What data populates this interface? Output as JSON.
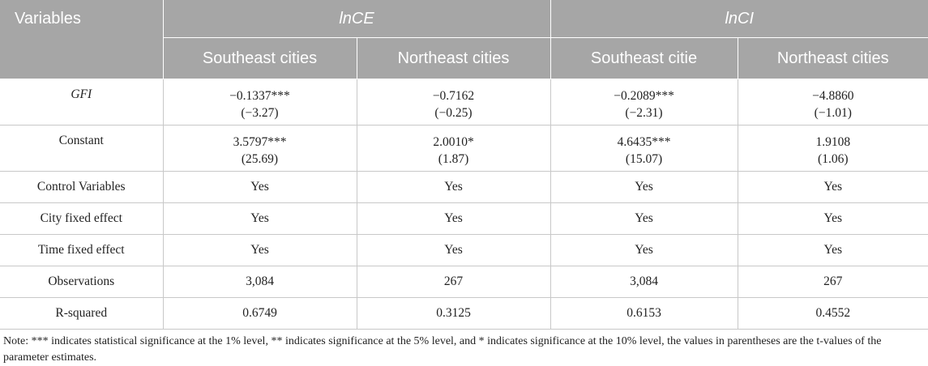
{
  "table": {
    "header": {
      "variables_label": "Variables",
      "group1": "lnCE",
      "group2": "lnCI",
      "sub": [
        "Southeast cities",
        "Northeast cities",
        "Southeast citie",
        "Northeast cities"
      ]
    },
    "rows": [
      {
        "label": "GFI",
        "cells": [
          [
            "−0.1337***",
            "(−3.27)"
          ],
          [
            "−0.7162",
            "(−0.25)"
          ],
          [
            "−0.2089***",
            "(−2.31)"
          ],
          [
            "−4.8860",
            "(−1.01)"
          ]
        ]
      },
      {
        "label": "Constant",
        "cells": [
          [
            "3.5797***",
            "(25.69)"
          ],
          [
            "2.0010*",
            "(1.87)"
          ],
          [
            "4.6435***",
            "(15.07)"
          ],
          [
            "1.9108",
            "(1.06)"
          ]
        ]
      },
      {
        "label": "Control Variables",
        "cells": [
          "Yes",
          "Yes",
          "Yes",
          "Yes"
        ]
      },
      {
        "label": "City fixed effect",
        "cells": [
          "Yes",
          "Yes",
          "Yes",
          "Yes"
        ]
      },
      {
        "label": "Time fixed effect",
        "cells": [
          "Yes",
          "Yes",
          "Yes",
          "Yes"
        ]
      },
      {
        "label": "Observations",
        "cells": [
          "3,084",
          "267",
          "3,084",
          "267"
        ]
      },
      {
        "label": "R-squared",
        "cells": [
          "0.6749",
          "0.3125",
          "0.6153",
          "0.4552"
        ]
      }
    ]
  },
  "note": "Note: *** indicates statistical significance at the 1% level, ** indicates significance at the 5% level, and * indicates significance at the 10% level, the values in parentheses are the t-values of the parameter estimates."
}
